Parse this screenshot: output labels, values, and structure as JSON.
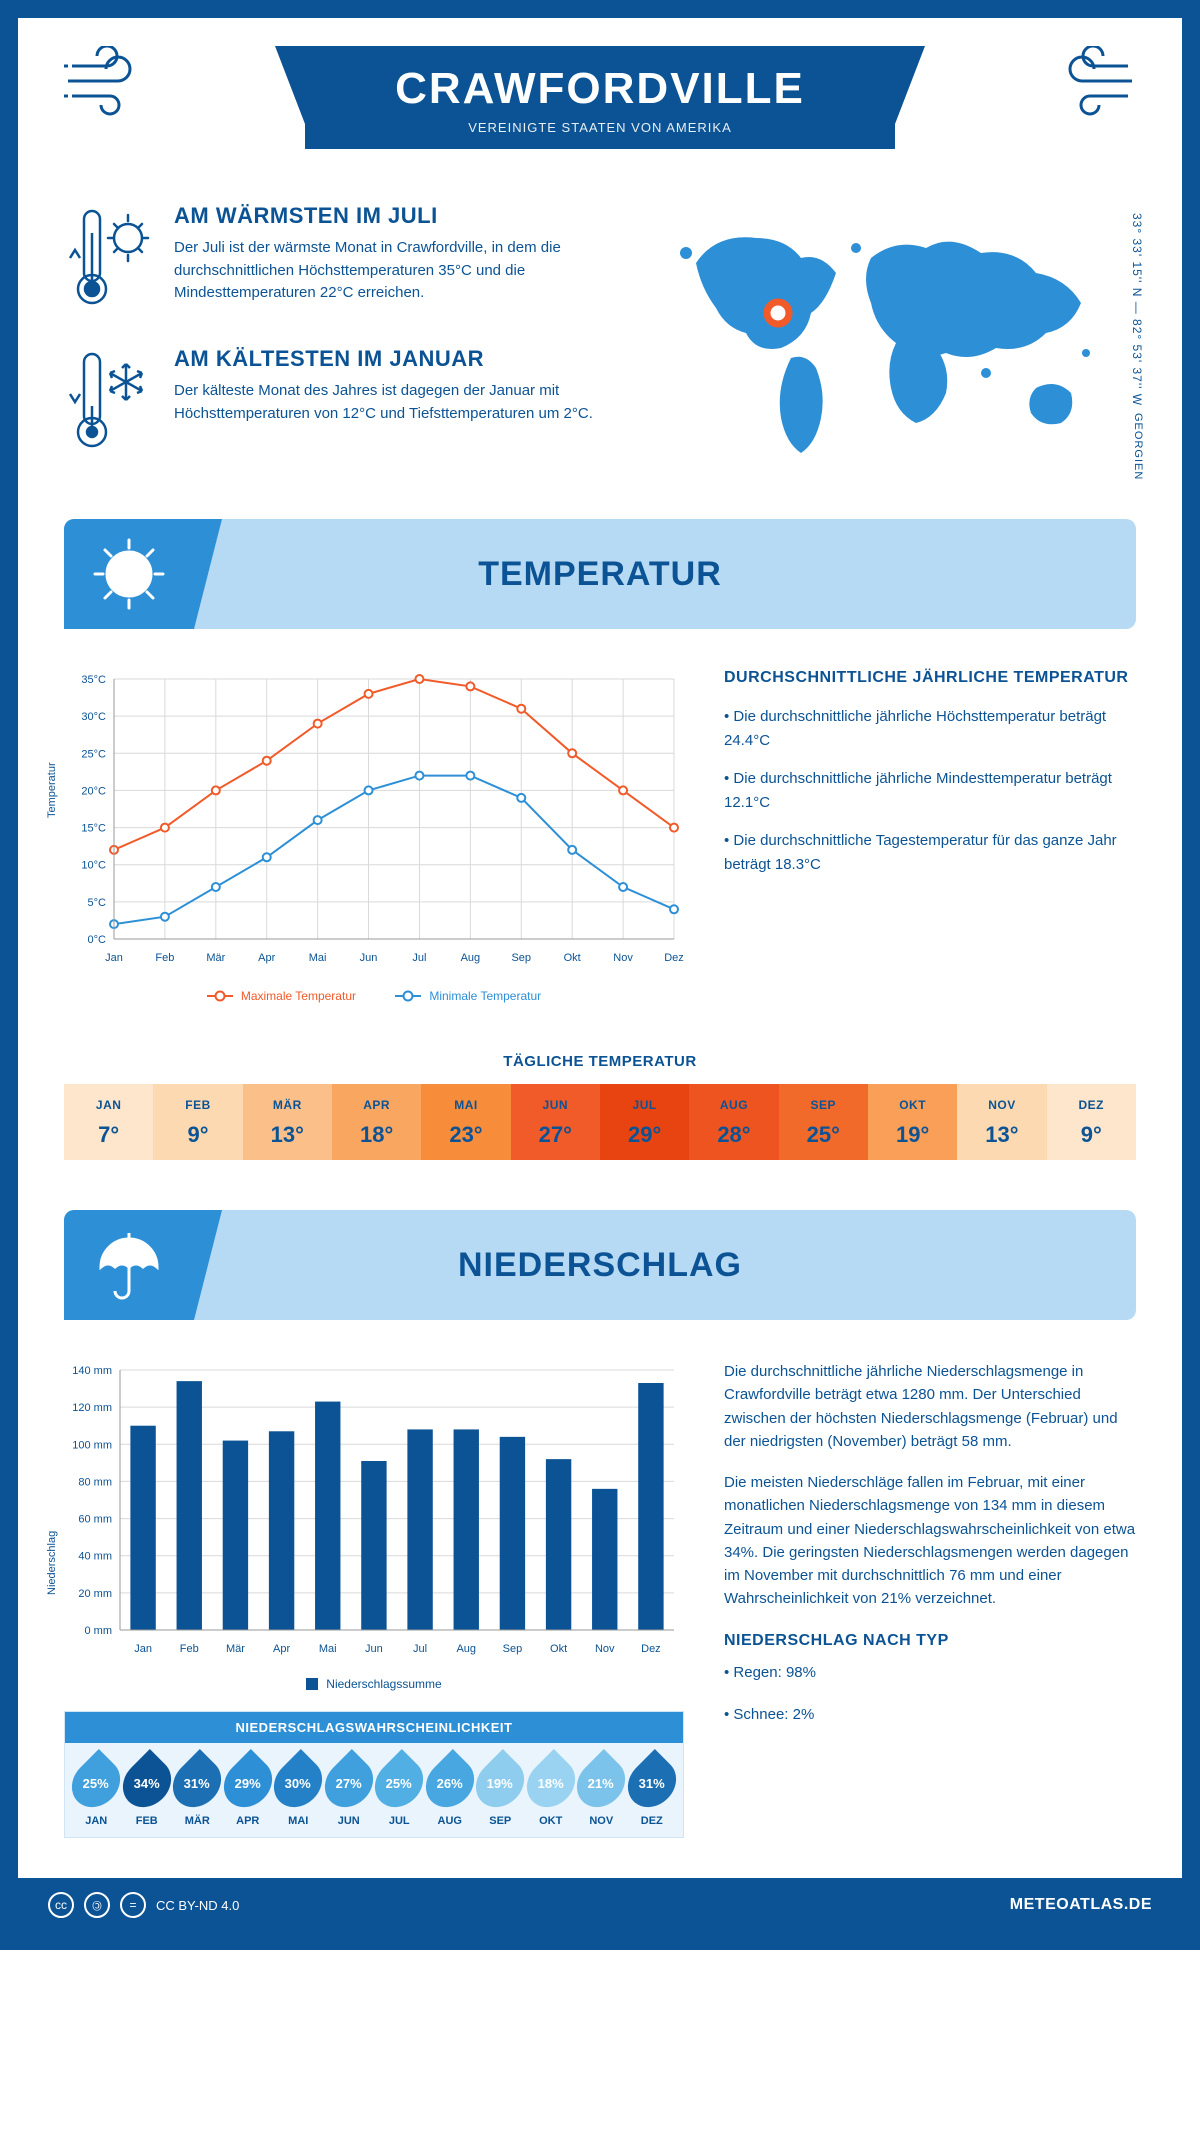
{
  "header": {
    "title": "CRAWFORDVILLE",
    "subtitle": "VEREINIGTE STAATEN VON AMERIKA"
  },
  "coords": "33° 33' 15'' N — 82° 53' 37'' W",
  "region": "GEORGIEN",
  "facts": {
    "warm": {
      "title": "AM WÄRMSTEN IM JULI",
      "text": "Der Juli ist der wärmste Monat in Crawfordville, in dem die durchschnittlichen Höchsttemperaturen 35°C und die Mindesttemperaturen 22°C erreichen."
    },
    "cold": {
      "title": "AM KÄLTESTEN IM JANUAR",
      "text": "Der kälteste Monat des Jahres ist dagegen der Januar mit Höchsttemperaturen von 12°C und Tiefsttemperaturen um 2°C."
    }
  },
  "temp_section": {
    "title": "TEMPERATUR"
  },
  "temp_chart": {
    "type": "line",
    "months": [
      "Jan",
      "Feb",
      "Mär",
      "Apr",
      "Mai",
      "Jun",
      "Jul",
      "Aug",
      "Sep",
      "Okt",
      "Nov",
      "Dez"
    ],
    "max": [
      12,
      15,
      20,
      24,
      29,
      33,
      35,
      34,
      31,
      25,
      20,
      15
    ],
    "min": [
      2,
      3,
      7,
      11,
      16,
      20,
      22,
      22,
      19,
      12,
      7,
      4
    ],
    "max_color": "#f15a29",
    "min_color": "#2d8fd6",
    "ylim": [
      0,
      35
    ],
    "ytick_step": 5,
    "ylabel": "Temperatur",
    "grid_color": "#d9d9d9",
    "background_color": "#ffffff",
    "marker": "circle",
    "line_width": 2,
    "legend_max": "Maximale Temperatur",
    "legend_min": "Minimale Temperatur"
  },
  "temp_side": {
    "title": "DURCHSCHNITTLICHE JÄHRLICHE TEMPERATUR",
    "b1": "• Die durchschnittliche jährliche Höchsttemperatur beträgt 24.4°C",
    "b2": "• Die durchschnittliche jährliche Mindesttemperatur beträgt 12.1°C",
    "b3": "• Die durchschnittliche Tagestemperatur für das ganze Jahr beträgt 18.3°C"
  },
  "daily_temp": {
    "title": "TÄGLICHE TEMPERATUR",
    "months": [
      "JAN",
      "FEB",
      "MÄR",
      "APR",
      "MAI",
      "JUN",
      "JUL",
      "AUG",
      "SEP",
      "OKT",
      "NOV",
      "DEZ"
    ],
    "values": [
      "7°",
      "9°",
      "13°",
      "18°",
      "23°",
      "27°",
      "29°",
      "28°",
      "25°",
      "19°",
      "13°",
      "9°"
    ],
    "colors": [
      "#fde6cc",
      "#fcd9b0",
      "#fbbf89",
      "#f9a660",
      "#f78c3a",
      "#f15a29",
      "#e84412",
      "#ed5420",
      "#f26a2a",
      "#f99f57",
      "#fcd9b0",
      "#fde6cc"
    ]
  },
  "precip_section": {
    "title": "NIEDERSCHLAG"
  },
  "precip_chart": {
    "type": "bar",
    "months": [
      "Jan",
      "Feb",
      "Mär",
      "Apr",
      "Mai",
      "Jun",
      "Jul",
      "Aug",
      "Sep",
      "Okt",
      "Nov",
      "Dez"
    ],
    "values": [
      110,
      134,
      102,
      107,
      123,
      91,
      108,
      108,
      104,
      92,
      76,
      133
    ],
    "bar_color": "#0b5394",
    "ylim": [
      0,
      140
    ],
    "ytick_step": 20,
    "ylabel": "Niederschlag",
    "grid_color": "#d9d9d9",
    "unit": "mm",
    "legend": "Niederschlagssumme",
    "bar_width": 0.55
  },
  "precip_text": {
    "p1": "Die durchschnittliche jährliche Niederschlagsmenge in Crawfordville beträgt etwa 1280 mm. Der Unterschied zwischen der höchsten Niederschlagsmenge (Februar) und der niedrigsten (November) beträgt 58 mm.",
    "p2": "Die meisten Niederschläge fallen im Februar, mit einer monatlichen Niederschlagsmenge von 134 mm in diesem Zeitraum und einer Niederschlagswahrscheinlichkeit von etwa 34%. Die geringsten Niederschlagsmengen werden dagegen im November mit durchschnittlich 76 mm und einer Wahrscheinlichkeit von 21% verzeichnet.",
    "type_title": "NIEDERSCHLAG NACH TYP",
    "type_1": "• Regen: 98%",
    "type_2": "• Schnee: 2%"
  },
  "prob": {
    "title": "NIEDERSCHLAGSWAHRSCHEINLICHKEIT",
    "months": [
      "JAN",
      "FEB",
      "MÄR",
      "APR",
      "MAI",
      "JUN",
      "JUL",
      "AUG",
      "SEP",
      "OKT",
      "NOV",
      "DEZ"
    ],
    "values": [
      "25%",
      "34%",
      "31%",
      "29%",
      "30%",
      "27%",
      "25%",
      "26%",
      "19%",
      "18%",
      "21%",
      "31%"
    ],
    "colors": [
      "#3fa0dd",
      "#0b5394",
      "#1c6fb3",
      "#2d8fd6",
      "#2481c7",
      "#3fa0dd",
      "#52afe4",
      "#48a7e0",
      "#8fcdef",
      "#9ad3f1",
      "#7bc3ea",
      "#1c6fb3"
    ]
  },
  "footer": {
    "license": "CC BY-ND 4.0",
    "site": "METEOATLAS.DE"
  }
}
